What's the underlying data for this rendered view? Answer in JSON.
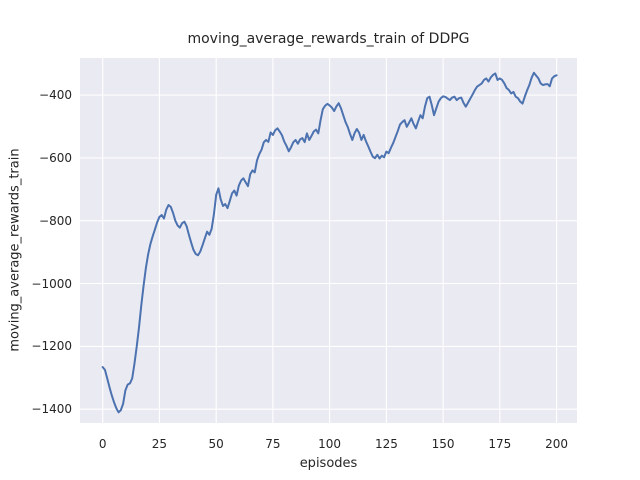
{
  "chart_data": {
    "type": "line",
    "title": "moving_average_rewards_train of DDPG",
    "xlabel": "episodes",
    "ylabel": "moving_average_rewards_train",
    "x_axis": {
      "tick_values": [
        0,
        25,
        50,
        75,
        100,
        125,
        150,
        175,
        200
      ],
      "tick_labels": [
        "0",
        "25",
        "50",
        "75",
        "100",
        "125",
        "150",
        "175",
        "200"
      ]
    },
    "y_axis": {
      "tick_values": [
        -400,
        -600,
        -800,
        -1000,
        -1200,
        -1400
      ],
      "tick_labels": [
        "−400",
        "−600",
        "−800",
        "−1000",
        "−1200",
        "−1400"
      ]
    },
    "xlim": [
      -10,
      209
    ],
    "ylim": [
      -1444,
      -282
    ],
    "grid": true,
    "legend": "none",
    "style": {
      "line_color": "#4c72b0",
      "line_width": 2,
      "plot_bg": "#eaeaf2",
      "grid_color": "#ffffff",
      "text_color": "#262626",
      "figure_bg": "#ffffff"
    },
    "series": [
      {
        "name": "moving_average_rewards_train",
        "x_start": 0,
        "x_step": 1,
        "values": [
          -1266,
          -1275,
          -1302,
          -1330,
          -1356,
          -1378,
          -1397,
          -1410,
          -1403,
          -1383,
          -1340,
          -1322,
          -1318,
          -1302,
          -1255,
          -1200,
          -1140,
          -1070,
          -1008,
          -952,
          -908,
          -875,
          -850,
          -828,
          -805,
          -788,
          -782,
          -793,
          -765,
          -750,
          -756,
          -775,
          -800,
          -815,
          -822,
          -808,
          -803,
          -818,
          -845,
          -870,
          -893,
          -906,
          -910,
          -898,
          -878,
          -856,
          -835,
          -845,
          -826,
          -780,
          -718,
          -697,
          -732,
          -753,
          -747,
          -760,
          -737,
          -713,
          -704,
          -720,
          -688,
          -672,
          -665,
          -678,
          -690,
          -652,
          -640,
          -646,
          -608,
          -588,
          -574,
          -550,
          -543,
          -549,
          -519,
          -527,
          -512,
          -506,
          -516,
          -528,
          -548,
          -562,
          -579,
          -566,
          -550,
          -543,
          -555,
          -541,
          -537,
          -550,
          -522,
          -543,
          -530,
          -516,
          -510,
          -522,
          -480,
          -445,
          -434,
          -428,
          -433,
          -440,
          -451,
          -436,
          -426,
          -442,
          -464,
          -486,
          -502,
          -524,
          -543,
          -521,
          -508,
          -520,
          -543,
          -527,
          -547,
          -563,
          -580,
          -596,
          -601,
          -590,
          -602,
          -593,
          -598,
          -580,
          -585,
          -568,
          -553,
          -534,
          -515,
          -494,
          -486,
          -480,
          -501,
          -488,
          -474,
          -492,
          -506,
          -484,
          -464,
          -474,
          -437,
          -410,
          -405,
          -432,
          -464,
          -442,
          -421,
          -410,
          -404,
          -406,
          -411,
          -416,
          -408,
          -405,
          -416,
          -410,
          -408,
          -425,
          -437,
          -424,
          -411,
          -398,
          -384,
          -373,
          -368,
          -363,
          -352,
          -347,
          -357,
          -344,
          -336,
          -331,
          -352,
          -347,
          -352,
          -363,
          -378,
          -384,
          -395,
          -390,
          -405,
          -410,
          -421,
          -427,
          -405,
          -385,
          -368,
          -345,
          -329,
          -338,
          -347,
          -363,
          -368,
          -366,
          -365,
          -372,
          -347,
          -340,
          -337
        ]
      }
    ]
  }
}
